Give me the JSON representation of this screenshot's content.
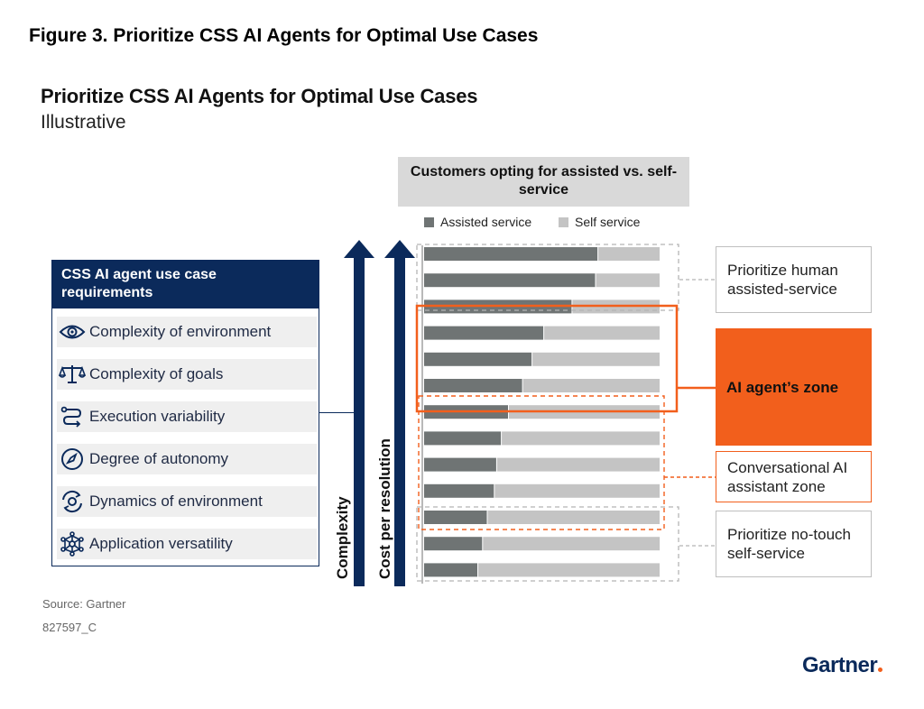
{
  "figure_title": "Figure 3. Prioritize CSS AI Agents for Optimal Use Cases",
  "requirements": {
    "header": "CSS AI agent use case requirements",
    "items": [
      {
        "label": "Complexity of environment",
        "icon": "eye-icon"
      },
      {
        "label": "Complexity of goals",
        "icon": "scales-icon"
      },
      {
        "label": "Execution variability",
        "icon": "route-icon"
      },
      {
        "label": "Degree of autonomy",
        "icon": "compass-icon"
      },
      {
        "label": "Dynamics of environment",
        "icon": "sync-gear-icon"
      },
      {
        "label": "Application versatility",
        "icon": "network-icon"
      }
    ]
  },
  "axes": {
    "complexity": "Complexity",
    "cost": "Cost per resolution"
  },
  "zones": {
    "human": "Prioritize human assisted-service",
    "ai": "AI agent’s zone",
    "conversational": "Conversational AI assistant zone",
    "notouch": "Prioritize no-touch self-service"
  },
  "chart_data": {
    "type": "bar",
    "orientation": "horizontal",
    "stacked": true,
    "title": "Prioritize CSS AI Agents for Optimal Use Cases",
    "subtitle": "Illustrative",
    "legend_title": "Customers opting for assisted vs. self-service",
    "legend_placement": "top",
    "xlim": [
      0,
      100
    ],
    "grid": false,
    "series": [
      {
        "name": "Assisted service",
        "color": "#6f7474",
        "values": [
          74,
          73,
          63,
          51,
          46,
          42,
          36,
          33,
          31,
          30,
          27,
          25,
          23
        ]
      },
      {
        "name": "Self service",
        "color": "#c4c4c4",
        "values": [
          26,
          27,
          37,
          49,
          54,
          58,
          64,
          67,
          69,
          70,
          73,
          75,
          77
        ]
      }
    ]
  },
  "source": "Source: Gartner",
  "doc_id": "827597_C",
  "brand": "Gartner",
  "colors": {
    "navy": "#0b2a5b",
    "orange": "#f25f1c",
    "assisted": "#6f7474",
    "self": "#c4c4c4",
    "zone_border": "#bfbfbf"
  }
}
